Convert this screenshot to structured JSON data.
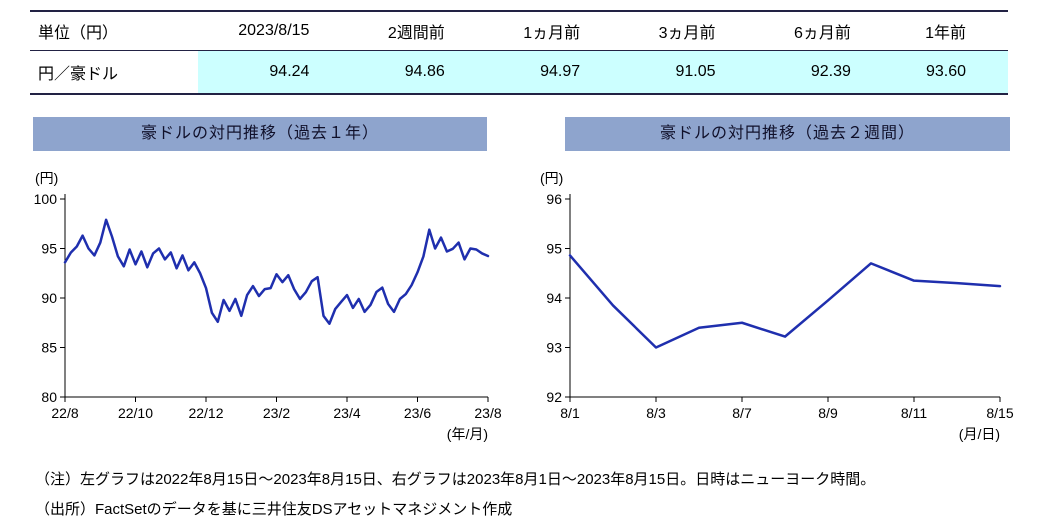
{
  "table": {
    "headers": [
      "単位（円）",
      "2023/8/15",
      "2週間前",
      "1ヵ月前",
      "3ヵ月前",
      "6ヵ月前",
      "1年前"
    ],
    "row_label": "円／豪ドル",
    "values": [
      "94.24",
      "94.86",
      "94.97",
      "91.05",
      "92.39",
      "93.60"
    ]
  },
  "chart_data": [
    {
      "type": "line",
      "title": "豪ドルの対円推移（過去１年）",
      "ylabel": "(円)",
      "xlabel": "(年/月)",
      "ylim": [
        80,
        100
      ],
      "yticks": [
        80,
        85,
        90,
        95,
        100
      ],
      "x_tick_labels": [
        "22/8",
        "22/10",
        "22/12",
        "23/2",
        "23/4",
        "23/6",
        "23/8"
      ],
      "grid": false,
      "legend": "none",
      "series": [
        {
          "name": "円／豪ドル",
          "values": [
            93.6,
            94.6,
            95.2,
            96.3,
            95.0,
            94.3,
            95.6,
            97.9,
            96.2,
            94.2,
            93.2,
            94.9,
            93.4,
            94.7,
            93.1,
            94.5,
            95.0,
            93.9,
            94.6,
            93.0,
            94.3,
            92.8,
            93.6,
            92.5,
            91.0,
            88.5,
            87.6,
            89.8,
            88.7,
            89.9,
            88.2,
            90.3,
            91.2,
            90.2,
            90.9,
            91.0,
            92.4,
            91.6,
            92.3,
            90.9,
            89.9,
            90.6,
            91.7,
            92.1,
            88.2,
            87.4,
            88.9,
            89.6,
            90.3,
            89.0,
            89.9,
            88.6,
            89.3,
            90.6,
            91.05,
            89.4,
            88.6,
            89.9,
            90.4,
            91.3,
            92.6,
            94.2,
            96.9,
            95.0,
            96.1,
            94.7,
            94.97,
            95.6,
            93.9,
            95.0,
            94.9,
            94.5,
            94.24
          ]
        }
      ]
    },
    {
      "type": "line",
      "title": "豪ドルの対円推移（過去２週間）",
      "ylabel": "(円)",
      "xlabel": "(月/日)",
      "ylim": [
        92,
        96
      ],
      "yticks": [
        92,
        93,
        94,
        95,
        96
      ],
      "x": [
        "8/1",
        "8/2",
        "8/3",
        "8/4",
        "8/7",
        "8/8",
        "8/9",
        "8/10",
        "8/11",
        "8/14",
        "8/15"
      ],
      "x_tick_labels": [
        "8/1",
        "8/3",
        "8/7",
        "8/9",
        "8/11",
        "8/15"
      ],
      "x_tick_indices": [
        0,
        2,
        4,
        6,
        8,
        10
      ],
      "grid": false,
      "legend": "none",
      "series": [
        {
          "name": "円／豪ドル",
          "values": [
            94.86,
            93.85,
            93.0,
            93.4,
            93.5,
            93.22,
            93.95,
            94.7,
            94.35,
            94.3,
            94.24
          ]
        }
      ]
    }
  ],
  "notes": [
    "（注）左グラフは2022年8月15日～2023年8月15日、右グラフは2023年8月1日～2023年8月15日。日時はニューヨーク時間。",
    "（出所）FactSetのデータを基に三井住友DSアセットマネジメント作成"
  ],
  "colors": {
    "title_bar": "#8ea4cd",
    "line": "#1f2fae",
    "highlight": "#ccffff",
    "table_border": "#222244"
  }
}
